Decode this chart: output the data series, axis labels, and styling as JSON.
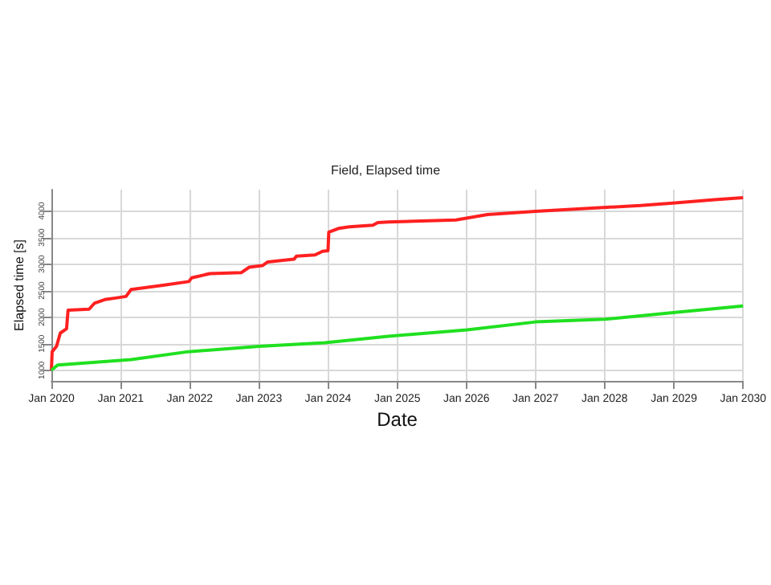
{
  "chart_data": {
    "type": "line",
    "title": "Field, Elapsed time",
    "xlabel": "Date",
    "ylabel": "Elapsed time [s]",
    "xlim": [
      "2020-01-01",
      "2030-01-01"
    ],
    "xticks": [
      {
        "value": "2020-01-01",
        "label": "Jan 2020"
      },
      {
        "value": "2021-01-01",
        "label": "Jan 2021"
      },
      {
        "value": "2022-01-01",
        "label": "Jan 2022"
      },
      {
        "value": "2023-01-01",
        "label": "Jan 2023"
      },
      {
        "value": "2024-01-01",
        "label": "Jan 2024"
      },
      {
        "value": "2025-01-01",
        "label": "Jan 2025"
      },
      {
        "value": "2026-01-01",
        "label": "Jan 2026"
      },
      {
        "value": "2027-01-01",
        "label": "Jan 2027"
      },
      {
        "value": "2028-01-01",
        "label": "Jan 2028"
      },
      {
        "value": "2029-01-01",
        "label": "Jan 2029"
      },
      {
        "value": "2030-01-01",
        "label": "Jan 2030"
      }
    ],
    "ylim": [
      800,
      4400
    ],
    "yticks": [
      1000,
      1500,
      2000,
      2500,
      3000,
      3500,
      4000
    ],
    "grid": true,
    "marker": "none",
    "line_style": "solid",
    "series": [
      {
        "color": "#ff2020",
        "x": [
          "2020-01-01",
          "2020-01-05",
          "2020-01-28",
          "2020-02-17",
          "2020-03-21",
          "2020-03-29",
          "2020-07-18",
          "2020-08-15",
          "2020-10-09",
          "2020-12-05",
          "2021-01-29",
          "2021-02-25",
          "2021-08-12",
          "2021-12-27",
          "2022-01-11",
          "2022-04-17",
          "2022-10-01",
          "2022-11-11",
          "2023-01-19",
          "2023-02-17",
          "2023-07-05",
          "2023-07-19",
          "2023-10-24",
          "2023-12-03",
          "2024-01-01",
          "2024-01-05",
          "2024-02-25",
          "2024-04-23",
          "2024-08-25",
          "2024-09-20",
          "2024-11-14",
          "2025-11-06",
          "2026-04-22",
          "2027-01-01",
          "2027-10-08",
          "2028-07-08",
          "2029-01-08",
          "2029-08-03",
          "2030-01-01"
        ],
        "values": [
          1000,
          1350,
          1450,
          1700,
          1780,
          2130,
          2150,
          2260,
          2330,
          2360,
          2390,
          2520,
          2600,
          2670,
          2740,
          2820,
          2840,
          2940,
          2970,
          3040,
          3090,
          3150,
          3170,
          3240,
          3250,
          3600,
          3670,
          3700,
          3730,
          3780,
          3790,
          3830,
          3930,
          3990,
          4050,
          4100,
          4150,
          4210,
          4250
        ]
      },
      {
        "color": "#20e020",
        "x": [
          "2020-01-01",
          "2020-02-03",
          "2021-02-25",
          "2021-12-24",
          "2023-01-01",
          "2023-12-16",
          "2024-11-14",
          "2026-01-04",
          "2027-01-01",
          "2028-01-01",
          "2029-01-08",
          "2030-01-01"
        ],
        "values": [
          1000,
          1100,
          1200,
          1350,
          1450,
          1520,
          1640,
          1760,
          1910,
          1960,
          2090,
          2210
        ]
      }
    ]
  }
}
